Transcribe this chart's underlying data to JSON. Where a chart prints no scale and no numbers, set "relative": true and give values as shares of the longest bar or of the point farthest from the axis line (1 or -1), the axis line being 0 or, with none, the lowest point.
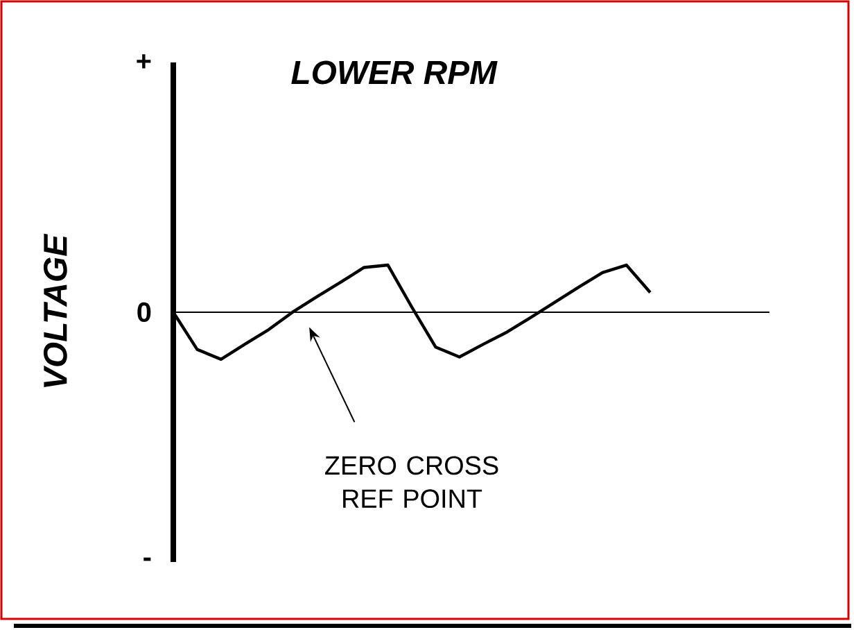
{
  "chart_data": {
    "type": "line",
    "title": "LOWER RPM",
    "ylabel": "VOLTAGE",
    "relative": true,
    "categories": [
      null,
      null,
      null,
      null,
      null,
      null,
      null,
      null,
      null,
      null,
      null,
      null,
      null,
      null,
      null,
      null,
      null,
      null,
      null,
      null,
      null,
      null,
      null,
      null,
      null,
      null
    ],
    "values": [
      0,
      -0.79,
      -1,
      -0.68,
      -0.37,
      0,
      0.32,
      0.63,
      0.95,
      1,
      0.11,
      -0.74,
      -0.95,
      -0.68,
      -0.42,
      -0.11,
      0.21,
      0.53,
      0.84,
      1,
      0.42,
      null,
      null,
      null,
      null,
      null
    ],
    "color": "#000000",
    "annotations": [
      "+",
      "0",
      "-",
      "ZERO CROSS REF POINT"
    ],
    "marker": "none",
    "line_style": "solid",
    "grid": false,
    "legend": false
  }
}
